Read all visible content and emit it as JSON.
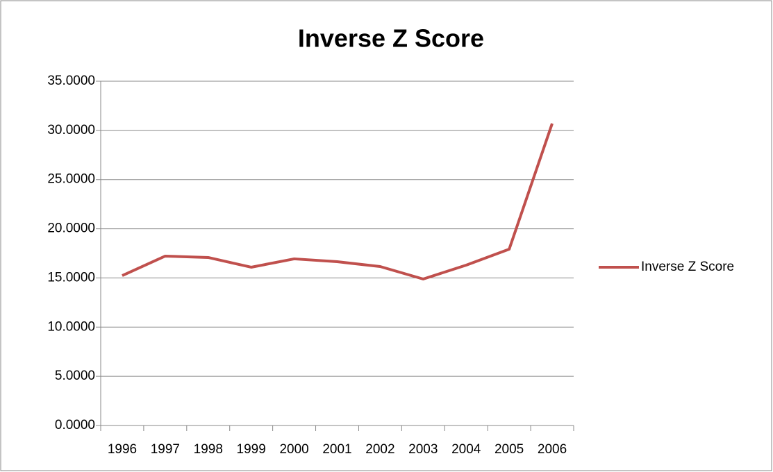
{
  "chart_data": {
    "type": "line",
    "title": "Inverse Z Score",
    "categories": [
      "1996",
      "1997",
      "1998",
      "1999",
      "2000",
      "2001",
      "2002",
      "2003",
      "2004",
      "2005",
      "2006"
    ],
    "series": [
      {
        "name": "Inverse Z Score",
        "color": "#c0504d",
        "values": [
          15.24,
          17.22,
          17.08,
          16.09,
          16.94,
          16.65,
          16.16,
          14.89,
          16.3,
          17.92,
          30.7
        ]
      }
    ],
    "ylim": [
      0,
      35
    ],
    "yticks": [
      {
        "value": 0,
        "label": "0.0000"
      },
      {
        "value": 5,
        "label": "5.0000"
      },
      {
        "value": 10,
        "label": "10.0000"
      },
      {
        "value": 15,
        "label": "15.0000"
      },
      {
        "value": 20,
        "label": "20.0000"
      },
      {
        "value": 25,
        "label": "25.0000"
      },
      {
        "value": 30,
        "label": "30.0000"
      },
      {
        "value": 35,
        "label": "35.0000"
      }
    ],
    "grid": true,
    "legend": "right"
  }
}
